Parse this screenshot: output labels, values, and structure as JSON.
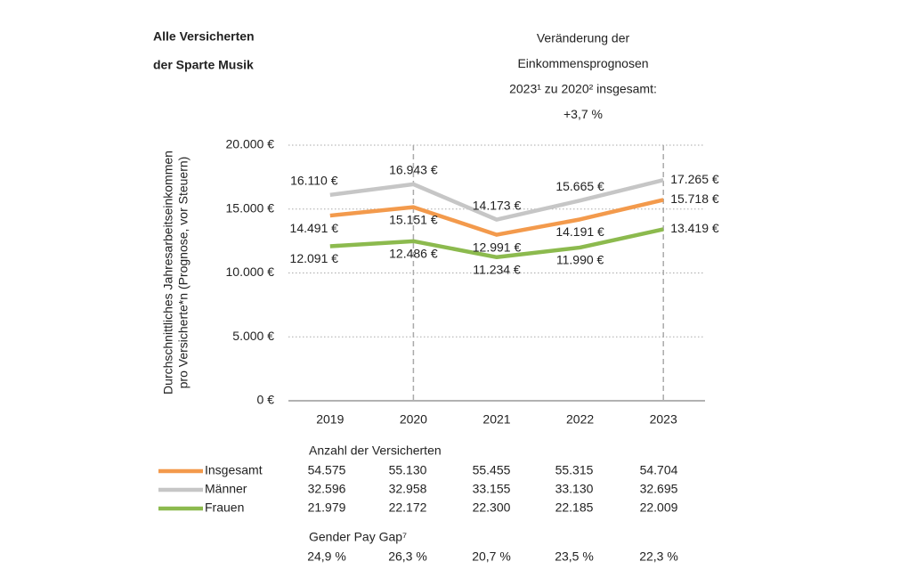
{
  "chart_data": {
    "type": "line",
    "title": [
      "Alle Versicherten",
      "der Sparte Musik"
    ],
    "subtitle": [
      "Veränderung der",
      "Einkommensprognosen",
      "2023¹ zu 2020² insgesamt:",
      "+3,7 %"
    ],
    "ylabel": [
      "Durchschnittliches Jahresarbeitseinkommen",
      "pro Versicherte*n (Prognose, vor Steuern)"
    ],
    "categories": [
      "2019",
      "2020",
      "2021",
      "2022",
      "2023"
    ],
    "highlight_categories": [
      "2020",
      "2023"
    ],
    "ylim": [
      0,
      20000
    ],
    "yticks": [
      {
        "value": 0,
        "label": "0 €"
      },
      {
        "value": 5000,
        "label": "5.000 €"
      },
      {
        "value": 10000,
        "label": "10.000 €"
      },
      {
        "value": 15000,
        "label": "15.000 €"
      },
      {
        "value": 20000,
        "label": "20.000 €"
      }
    ],
    "grid": true,
    "series": [
      {
        "name": "Insgesamt",
        "color": "#f39a4c",
        "values": [
          14491,
          15151,
          12991,
          14191,
          15718
        ],
        "value_labels": [
          "14.491 €",
          "15.151 €",
          "12.991 €",
          "14.191 €",
          "15.718 €"
        ]
      },
      {
        "name": "Männer",
        "color": "#c6c6c6",
        "values": [
          16110,
          16943,
          14173,
          15665,
          17265
        ],
        "value_labels": [
          "16.110 €",
          "16.943 €",
          "14.173 €",
          "15.665 €",
          "17.265 €"
        ]
      },
      {
        "name": "Frauen",
        "color": "#8cba4e",
        "values": [
          12091,
          12486,
          11234,
          11990,
          13419
        ],
        "value_labels": [
          "12.091 €",
          "12.486 €",
          "11.234 €",
          "11.990 €",
          "13.419 €"
        ]
      }
    ],
    "insured_table": {
      "title": "Anzahl der Versicherten",
      "rows": [
        [
          "54.575",
          "55.130",
          "55.455",
          "55.315",
          "54.704"
        ],
        [
          "32.596",
          "32.958",
          "33.155",
          "33.130",
          "32.695"
        ],
        [
          "21.979",
          "22.172",
          "22.300",
          "22.185",
          "22.009"
        ]
      ]
    },
    "pay_gap": {
      "title": "Gender Pay Gap⁷",
      "values": [
        "24,9 %",
        "26,3 %",
        "20,7 %",
        "23,5 %",
        "22,3 %"
      ]
    }
  }
}
